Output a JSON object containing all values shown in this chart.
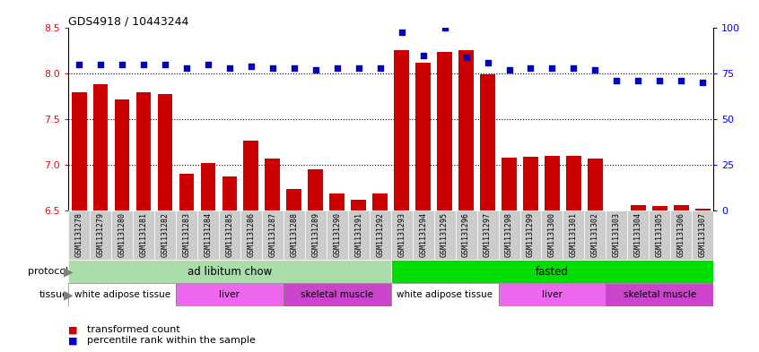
{
  "title": "GDS4918 / 10443244",
  "samples": [
    "GSM1131278",
    "GSM1131279",
    "GSM1131280",
    "GSM1131281",
    "GSM1131282",
    "GSM1131283",
    "GSM1131284",
    "GSM1131285",
    "GSM1131286",
    "GSM1131287",
    "GSM1131288",
    "GSM1131289",
    "GSM1131290",
    "GSM1131291",
    "GSM1131292",
    "GSM1131293",
    "GSM1131294",
    "GSM1131295",
    "GSM1131296",
    "GSM1131297",
    "GSM1131298",
    "GSM1131299",
    "GSM1131300",
    "GSM1131301",
    "GSM1131302",
    "GSM1131303",
    "GSM1131304",
    "GSM1131305",
    "GSM1131306",
    "GSM1131307"
  ],
  "bar_values": [
    7.8,
    7.88,
    7.72,
    7.8,
    7.78,
    6.9,
    7.02,
    6.87,
    7.26,
    7.07,
    6.73,
    6.95,
    6.68,
    6.62,
    6.68,
    8.26,
    8.12,
    8.24,
    8.26,
    7.99,
    7.08,
    7.09,
    7.1,
    7.1,
    7.07,
    6.5,
    6.56,
    6.55,
    6.56,
    6.52
  ],
  "percentile_values": [
    80,
    80,
    80,
    80,
    80,
    78,
    80,
    78,
    79,
    78,
    78,
    77,
    78,
    78,
    78,
    98,
    85,
    100,
    84,
    81,
    77,
    78,
    78,
    78,
    77,
    71,
    71,
    71,
    71,
    70
  ],
  "ylim_left": [
    6.5,
    8.5
  ],
  "ylim_right": [
    0,
    100
  ],
  "bar_color": "#cc0000",
  "dot_color": "#0000cc",
  "protocol_groups": [
    {
      "label": "ad libitum chow",
      "start": 0,
      "end": 15,
      "color": "#aaddaa"
    },
    {
      "label": "fasted",
      "start": 15,
      "end": 30,
      "color": "#00dd00"
    }
  ],
  "tissue_groups": [
    {
      "label": "white adipose tissue",
      "start": 0,
      "end": 5,
      "color": "#ffffff"
    },
    {
      "label": "liver",
      "start": 5,
      "end": 10,
      "color": "#ee66ee"
    },
    {
      "label": "skeletal muscle",
      "start": 10,
      "end": 15,
      "color": "#cc44cc"
    },
    {
      "label": "white adipose tissue",
      "start": 15,
      "end": 20,
      "color": "#ffffff"
    },
    {
      "label": "liver",
      "start": 20,
      "end": 25,
      "color": "#ee66ee"
    },
    {
      "label": "skeletal muscle",
      "start": 25,
      "end": 30,
      "color": "#cc44cc"
    }
  ],
  "yticks_left": [
    6.5,
    7.0,
    7.5,
    8.0,
    8.5
  ],
  "yticks_right": [
    0,
    25,
    50,
    75,
    100
  ],
  "xticklabel_bg": "#cccccc",
  "legend_items": [
    {
      "label": "transformed count",
      "color": "#cc0000"
    },
    {
      "label": "percentile rank within the sample",
      "color": "#0000cc"
    }
  ]
}
